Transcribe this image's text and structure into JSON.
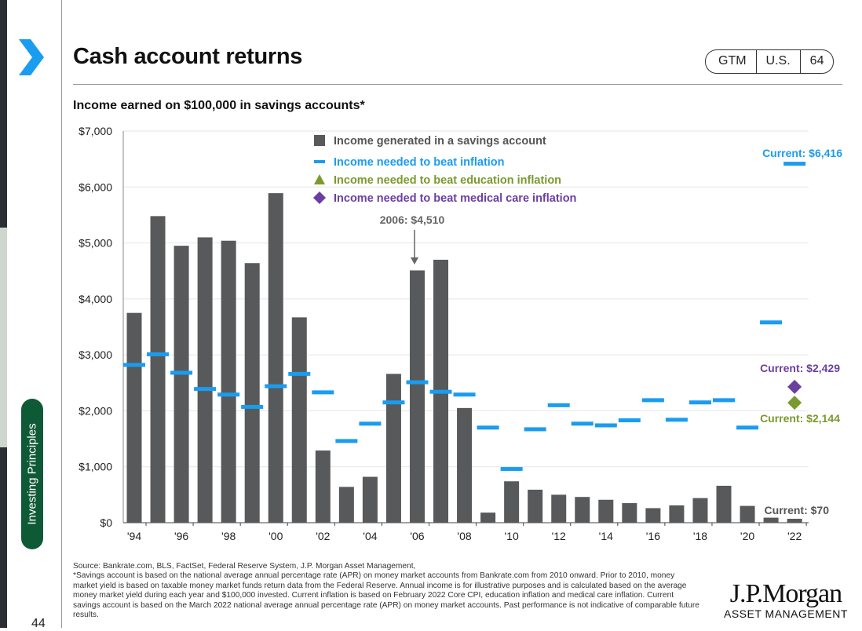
{
  "header": {
    "title": "Cash account returns",
    "badge": [
      "GTM",
      "U.S.",
      "64"
    ]
  },
  "sidebar": {
    "label": "Investing Principles"
  },
  "page_number": "44",
  "footnote": {
    "source": "Source: Bankrate.com, BLS, FactSet, Federal Reserve System, J.P. Morgan Asset Management,",
    "text": "*Savings account is based on the national average annual percentage rate (APR) on money market accounts from Bankrate.com from 2010 onward. Prior to 2010, money market yield is based on taxable money market funds return data from the Federal Reserve. Annual income is for illustrative purposes and is calculated based on the average money market yield during each year and $100,000 invested. Current inflation is based on February 2022 Core CPI, education inflation and medical care inflation. Current savings account is based on the March 2022 national average annual percentage rate (APR) on money market accounts. Past performance is not indicative of comparable future results."
  },
  "logo": {
    "line1": "J.P.Morgan",
    "line2": "ASSET MANAGEMENT"
  },
  "chart_data": {
    "type": "bar",
    "title": "Income earned on $100,000 in savings accounts*",
    "years": [
      1994,
      1995,
      1996,
      1997,
      1998,
      1999,
      2000,
      2001,
      2002,
      2003,
      2004,
      2005,
      2006,
      2007,
      2008,
      2009,
      2010,
      2011,
      2012,
      2013,
      2014,
      2015,
      2016,
      2017,
      2018,
      2019,
      2020,
      2021,
      2022
    ],
    "xtick_labels": [
      "'94",
      "'96",
      "'98",
      "'00",
      "'02",
      "'04",
      "'06",
      "'08",
      "'10",
      "'12",
      "'14",
      "'16",
      "'18",
      "'20",
      "'22"
    ],
    "ytick_labels": [
      "$0",
      "$1,000",
      "$2,000",
      "$3,000",
      "$4,000",
      "$5,000",
      "$6,000",
      "$7,000"
    ],
    "ylim": [
      0,
      7000
    ],
    "grid": true,
    "series": [
      {
        "name": "Income generated in a savings account",
        "kind": "bar",
        "color": "#58595b",
        "values": [
          3750,
          5480,
          4950,
          5100,
          5040,
          4640,
          5890,
          3670,
          1290,
          640,
          820,
          2660,
          4510,
          4700,
          2050,
          180,
          740,
          590,
          500,
          460,
          410,
          350,
          260,
          310,
          440,
          660,
          300,
          90,
          70
        ]
      },
      {
        "name": "Income needed to beat inflation",
        "kind": "dash",
        "color": "#1a9cf0",
        "values": [
          2820,
          3010,
          2680,
          2390,
          2290,
          2070,
          2440,
          2660,
          2330,
          1460,
          1770,
          2150,
          2510,
          2340,
          2290,
          1700,
          960,
          1670,
          2100,
          1770,
          1740,
          1830,
          2190,
          1840,
          2150,
          2190,
          1700,
          3580,
          6416
        ]
      },
      {
        "name": "Income needed to beat education inflation",
        "kind": "triangle",
        "color": "#7a9a2e",
        "points": [
          {
            "x": 2022,
            "y": 2144
          }
        ]
      },
      {
        "name": "Income needed to beat medical care inflation",
        "kind": "diamond",
        "color": "#6b3fa0",
        "points": [
          {
            "x": 2022,
            "y": 2429
          }
        ]
      }
    ],
    "annotations": [
      {
        "text": "2006: $4,510",
        "color": "#666666"
      },
      {
        "text": "Current: $6,416",
        "color": "#1a9cf0"
      },
      {
        "text": "Current: $2,429",
        "color": "#6b3fa0"
      },
      {
        "text": "Current: $2,144",
        "color": "#7a9a2e"
      },
      {
        "text": "Current: $70",
        "color": "#555555"
      }
    ],
    "legend_position": "top-center"
  }
}
